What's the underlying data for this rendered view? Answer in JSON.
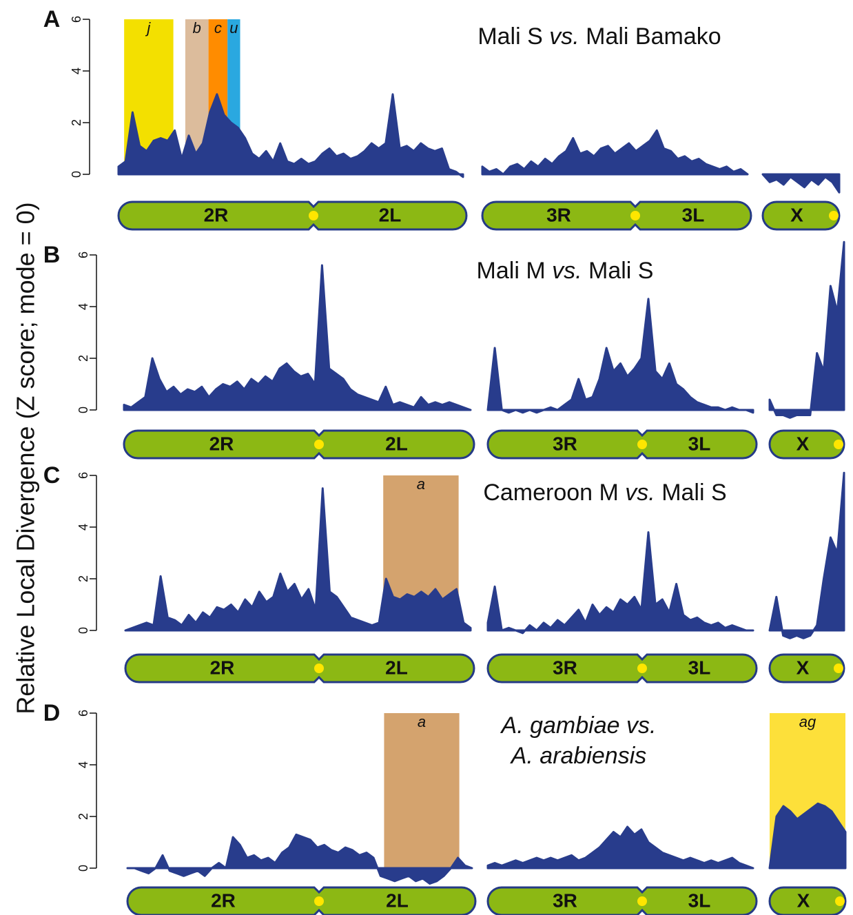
{
  "y_label": "Relative Local Divergence (Z score; mode = 0)",
  "chart_data": [
    {
      "type": "area",
      "panel": "A",
      "title": [
        [
          "Mali S ",
          "vs.",
          " Mali Bamako"
        ]
      ],
      "title_italic": [
        [
          false,
          true,
          false
        ]
      ],
      "ylim": [
        -0.6,
        6
      ],
      "yticks": [
        0,
        2,
        4,
        6
      ],
      "color": "#283c8c",
      "arms": [
        "2R",
        "2L",
        "3R",
        "3L",
        "X"
      ],
      "series": [
        {
          "values": [
            0.3,
            0.5,
            2.4,
            1.1,
            0.9,
            1.3,
            1.4,
            1.3,
            1.7,
            0.6,
            1.5,
            0.8,
            1.2,
            2.4,
            3.1,
            2.3,
            2.0,
            1.8,
            1.4,
            0.8,
            0.6,
            0.9,
            0.5,
            1.2,
            0.5,
            0.4,
            0.6,
            0.4,
            0.5,
            0.8,
            1.0,
            0.7,
            0.8,
            0.6,
            0.7,
            0.9,
            1.2,
            1.0,
            1.2,
            3.1,
            1.0,
            1.1,
            0.9,
            1.2,
            1.0,
            0.9,
            1.0,
            0.2,
            0.1,
            -0.1
          ]
        },
        {
          "values": [
            0.3,
            0.1,
            0.2,
            0.0,
            0.3,
            0.4,
            0.2,
            0.5,
            0.3,
            0.6,
            0.4,
            0.7,
            0.9,
            1.4,
            0.8,
            0.9,
            0.7,
            1.0,
            1.1,
            0.8,
            1.0,
            1.2,
            0.9,
            1.1,
            1.3,
            1.7,
            1.0,
            0.9,
            0.6,
            0.7,
            0.5,
            0.6,
            0.4,
            0.3,
            0.2,
            0.3,
            0.1,
            0.2,
            0.0
          ]
        },
        {
          "values": [
            0.0,
            -0.3,
            -0.2,
            -0.4,
            -0.1,
            -0.3,
            -0.5,
            -0.2,
            -0.4,
            -0.1,
            -0.3,
            -0.7
          ]
        }
      ],
      "highlights": [
        {
          "label": "j",
          "color": "#f3e000",
          "series": 0,
          "from": 0.8,
          "to": 7.8
        },
        {
          "label": "b",
          "color": "#dcbc9c",
          "series": 0,
          "from": 9.5,
          "to": 12.8
        },
        {
          "label": "c",
          "color": "#ff8c00",
          "series": 0,
          "from": 12.8,
          "to": 15.5
        },
        {
          "label": "u",
          "color": "#2aa8e0",
          "series": 0,
          "from": 15.5,
          "to": 17.3
        }
      ]
    },
    {
      "type": "area",
      "panel": "B",
      "title": [
        [
          "Mali M ",
          "vs.",
          " Mali S"
        ]
      ],
      "title_italic": [
        [
          false,
          true,
          false
        ]
      ],
      "ylim": [
        -0.6,
        6
      ],
      "yticks": [
        0,
        2,
        4,
        6
      ],
      "color": "#283c8c",
      "arms": [
        "2R",
        "2L",
        "3R",
        "3L",
        "X"
      ],
      "series": [
        {
          "values": [
            0.2,
            0.1,
            0.3,
            0.5,
            2.0,
            1.2,
            0.7,
            0.9,
            0.6,
            0.8,
            0.7,
            0.9,
            0.5,
            0.8,
            1.0,
            0.9,
            1.1,
            0.8,
            1.2,
            1.0,
            1.3,
            1.1,
            1.6,
            1.8,
            1.5,
            1.3,
            1.4,
            1.0,
            5.6,
            1.6,
            1.4,
            1.2,
            0.8,
            0.6,
            0.5,
            0.4,
            0.3,
            0.9,
            0.2,
            0.3,
            0.2,
            0.1,
            0.5,
            0.2,
            0.3,
            0.2,
            0.3,
            0.2,
            0.1,
            0.0
          ]
        },
        {
          "values": [
            0.0,
            2.4,
            0.0,
            -0.1,
            0.0,
            -0.1,
            0.0,
            -0.1,
            0.0,
            0.1,
            0.0,
            0.2,
            0.4,
            1.2,
            0.4,
            0.5,
            1.2,
            2.4,
            1.5,
            1.8,
            1.3,
            1.6,
            2.0,
            4.3,
            1.5,
            1.2,
            1.8,
            1.0,
            0.8,
            0.5,
            0.3,
            0.2,
            0.1,
            0.1,
            0.0,
            0.1,
            0.0,
            0.0,
            -0.1
          ]
        },
        {
          "values": [
            0.4,
            -0.2,
            -0.2,
            -0.3,
            -0.2,
            -0.2,
            -0.2,
            2.2,
            1.5,
            4.8,
            3.8,
            6.5
          ]
        }
      ],
      "highlights": []
    },
    {
      "type": "area",
      "panel": "C",
      "title": [
        [
          "Cameroon M ",
          "vs.",
          " Mali S"
        ]
      ],
      "title_italic": [
        [
          false,
          true,
          false
        ]
      ],
      "ylim": [
        -0.6,
        6
      ],
      "yticks": [
        0,
        2,
        4,
        6
      ],
      "color": "#283c8c",
      "arms": [
        "2R",
        "2L",
        "3R",
        "3L",
        "X"
      ],
      "series": [
        {
          "values": [
            0.0,
            0.1,
            0.2,
            0.3,
            0.2,
            2.1,
            0.5,
            0.4,
            0.2,
            0.6,
            0.3,
            0.7,
            0.5,
            0.9,
            0.8,
            1.0,
            0.7,
            1.2,
            0.9,
            1.5,
            1.1,
            1.3,
            2.2,
            1.5,
            1.8,
            1.2,
            1.6,
            0.8,
            5.5,
            1.5,
            1.3,
            0.9,
            0.5,
            0.4,
            0.3,
            0.2,
            0.3,
            2.0,
            1.3,
            1.2,
            1.4,
            1.3,
            1.5,
            1.3,
            1.6,
            1.2,
            1.4,
            1.6,
            0.3,
            0.1
          ]
        },
        {
          "values": [
            0.3,
            1.7,
            0.0,
            0.1,
            0.0,
            -0.1,
            0.2,
            0.0,
            0.3,
            0.1,
            0.4,
            0.2,
            0.5,
            0.8,
            0.3,
            1.0,
            0.6,
            0.9,
            0.7,
            1.2,
            1.0,
            1.3,
            0.8,
            3.8,
            1.0,
            1.2,
            0.7,
            1.8,
            0.6,
            0.4,
            0.5,
            0.3,
            0.2,
            0.3,
            0.1,
            0.2,
            0.1,
            0.0,
            0.0
          ]
        },
        {
          "values": [
            0.0,
            1.3,
            -0.2,
            -0.3,
            -0.2,
            -0.3,
            -0.2,
            0.2,
            2.0,
            3.6,
            3.0,
            6.1
          ]
        }
      ],
      "highlights": [
        {
          "label": "a",
          "color": "#d4a36e",
          "series": 0,
          "from": 36.6,
          "to": 47.3
        }
      ]
    },
    {
      "type": "area",
      "panel": "D",
      "title": [
        [
          "A. gambiae vs."
        ],
        [
          "A. arabiensis"
        ]
      ],
      "title_italic": [
        [
          true
        ],
        [
          true
        ]
      ],
      "ylim": [
        -0.6,
        6
      ],
      "yticks": [
        0,
        2,
        4,
        6
      ],
      "color": "#283c8c",
      "arms": [
        "2R",
        "2L",
        "3R",
        "3L",
        "X"
      ],
      "series": [
        {
          "values": [
            0.0,
            0.0,
            -0.1,
            -0.2,
            0.0,
            0.5,
            -0.1,
            -0.2,
            -0.3,
            -0.2,
            -0.1,
            -0.3,
            0.0,
            0.2,
            0.0,
            1.2,
            0.9,
            0.4,
            0.5,
            0.3,
            0.4,
            0.2,
            0.6,
            0.8,
            1.3,
            1.2,
            1.1,
            0.8,
            0.9,
            0.7,
            0.6,
            0.8,
            0.7,
            0.5,
            0.6,
            0.4,
            -0.3,
            -0.4,
            -0.5,
            -0.4,
            -0.3,
            -0.5,
            -0.4,
            -0.6,
            -0.5,
            -0.3,
            0.0,
            0.4,
            0.1,
            0.0
          ]
        },
        {
          "values": [
            0.1,
            0.2,
            0.1,
            0.2,
            0.3,
            0.2,
            0.3,
            0.4,
            0.3,
            0.4,
            0.3,
            0.4,
            0.5,
            0.3,
            0.4,
            0.6,
            0.8,
            1.1,
            1.4,
            1.2,
            1.6,
            1.3,
            1.5,
            1.0,
            0.8,
            0.6,
            0.5,
            0.4,
            0.3,
            0.4,
            0.3,
            0.2,
            0.3,
            0.2,
            0.3,
            0.4,
            0.2,
            0.1,
            0.0
          ]
        },
        {
          "values": [
            0.0,
            2.0,
            2.4,
            2.2,
            1.9,
            2.1,
            2.3,
            2.5,
            2.4,
            2.2,
            1.8,
            1.4
          ]
        }
      ],
      "highlights": [
        {
          "label": "a",
          "color": "#d4a36e",
          "series": 0,
          "from": 36.5,
          "to": 47.2
        },
        {
          "label": "ag",
          "color": "#fde03a",
          "series": 2,
          "from": 0,
          "to": 11
        }
      ]
    }
  ]
}
